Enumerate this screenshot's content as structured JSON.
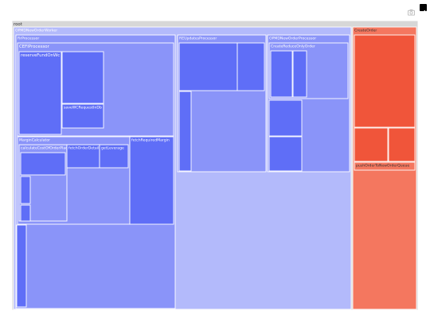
{
  "toolbar": {
    "camera_icon": "camera-icon",
    "logo_icon": "plotly-logo-icon"
  },
  "chart_data": {
    "type": "treemap",
    "colors": {
      "blue_deep": "#5f6ef7",
      "blue_mid": "#8a94f9",
      "blue_light": "#b3bafb",
      "red_deep": "#f0553a",
      "red_light": "#f4775f",
      "root_bg": "#d7d7d7"
    },
    "nodes": [
      {
        "id": "root",
        "label": "root"
      },
      {
        "id": "opmw",
        "label": "OPMDNewOrderWorker",
        "parent": "root"
      },
      {
        "id": "create",
        "label": "CreateOrder",
        "parent": "root"
      },
      {
        "id": "rr",
        "label": "RrProcessor",
        "parent": "opmw"
      },
      {
        "id": "reu",
        "label": "REUpdatesProcessor",
        "parent": "opmw"
      },
      {
        "id": "opmp",
        "label": "OPMDNewOrderProcessor",
        "parent": "opmw"
      },
      {
        "id": "cefi",
        "label": "CEFIProcessor",
        "parent": "rr"
      },
      {
        "id": "margin",
        "label": "MarginCalculator",
        "parent": "rr"
      },
      {
        "id": "frm",
        "label": "fetchRequiredMargin",
        "parent": "rr"
      },
      {
        "id": "rr_bar",
        "label": "",
        "parent": "rr"
      },
      {
        "id": "rfw",
        "label": "reserveFundOnWc",
        "parent": "cefi"
      },
      {
        "id": "cefi_inner",
        "label": "",
        "parent": "cefi"
      },
      {
        "id": "swc",
        "label": "saveWCRequestInDb",
        "parent": "cefi"
      },
      {
        "id": "lcop",
        "label": "calculateCostOfOrderPlacement",
        "parent": "margin"
      },
      {
        "id": "fod",
        "label": "fetchOrderDetails",
        "parent": "margin"
      },
      {
        "id": "glev",
        "label": "getLeverage",
        "parent": "margin"
      },
      {
        "id": "lpct",
        "label": "",
        "parent": "lcop"
      },
      {
        "id": "lsm1",
        "label": "",
        "parent": "lcop"
      },
      {
        "id": "lsm2",
        "label": "",
        "parent": "lcop"
      },
      {
        "id": "reu_a",
        "label": "",
        "parent": "reu"
      },
      {
        "id": "reu_b",
        "label": "",
        "parent": "reu"
      },
      {
        "id": "reu_c",
        "label": "",
        "parent": "reu"
      },
      {
        "id": "crro",
        "label": "CreateReduceOnlyOrder",
        "parent": "opmp"
      },
      {
        "id": "crro_a",
        "label": "",
        "parent": "crro"
      },
      {
        "id": "crro_b",
        "label": "",
        "parent": "crro"
      },
      {
        "id": "opmp_b",
        "label": "",
        "parent": "opmp"
      },
      {
        "id": "opmp_c",
        "label": "",
        "parent": "opmp"
      },
      {
        "id": "cr_a",
        "label": "",
        "parent": "create"
      },
      {
        "id": "cr_b",
        "label": "",
        "parent": "create"
      },
      {
        "id": "cr_c",
        "label": "",
        "parent": "create"
      },
      {
        "id": "push",
        "label": "pushOrderToNewOrderQueue",
        "parent": "create"
      }
    ]
  }
}
